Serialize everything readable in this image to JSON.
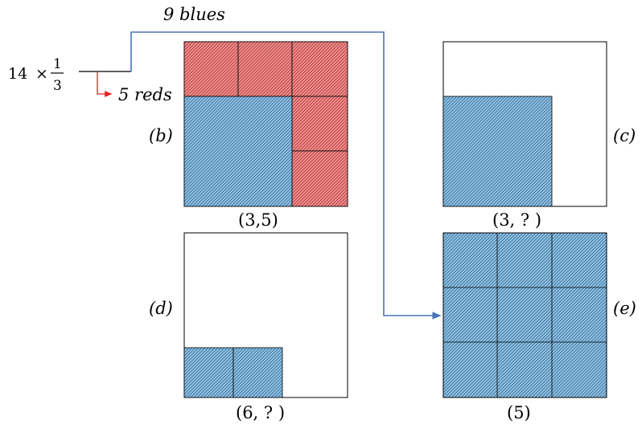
{
  "expression": {
    "whole": "14",
    "times": "×",
    "numerator": "1",
    "denominator": "3"
  },
  "labels": {
    "blues": "9 blues",
    "reds": "5 reds"
  },
  "panels": {
    "b": {
      "tag": "(b)",
      "caption": "(3,5)"
    },
    "c": {
      "tag": "(c)",
      "caption": "(3, ? )"
    },
    "d": {
      "tag": "(d)",
      "caption": "(6, ? )"
    },
    "e": {
      "tag": "(e)",
      "caption": "(5)"
    }
  },
  "colors": {
    "red_fill": "#ec8e8e",
    "blue_fill": "#8ec0e2",
    "blue_arrow": "#4a74b8",
    "red_arrow": "#e02020",
    "outline": "#000000"
  }
}
